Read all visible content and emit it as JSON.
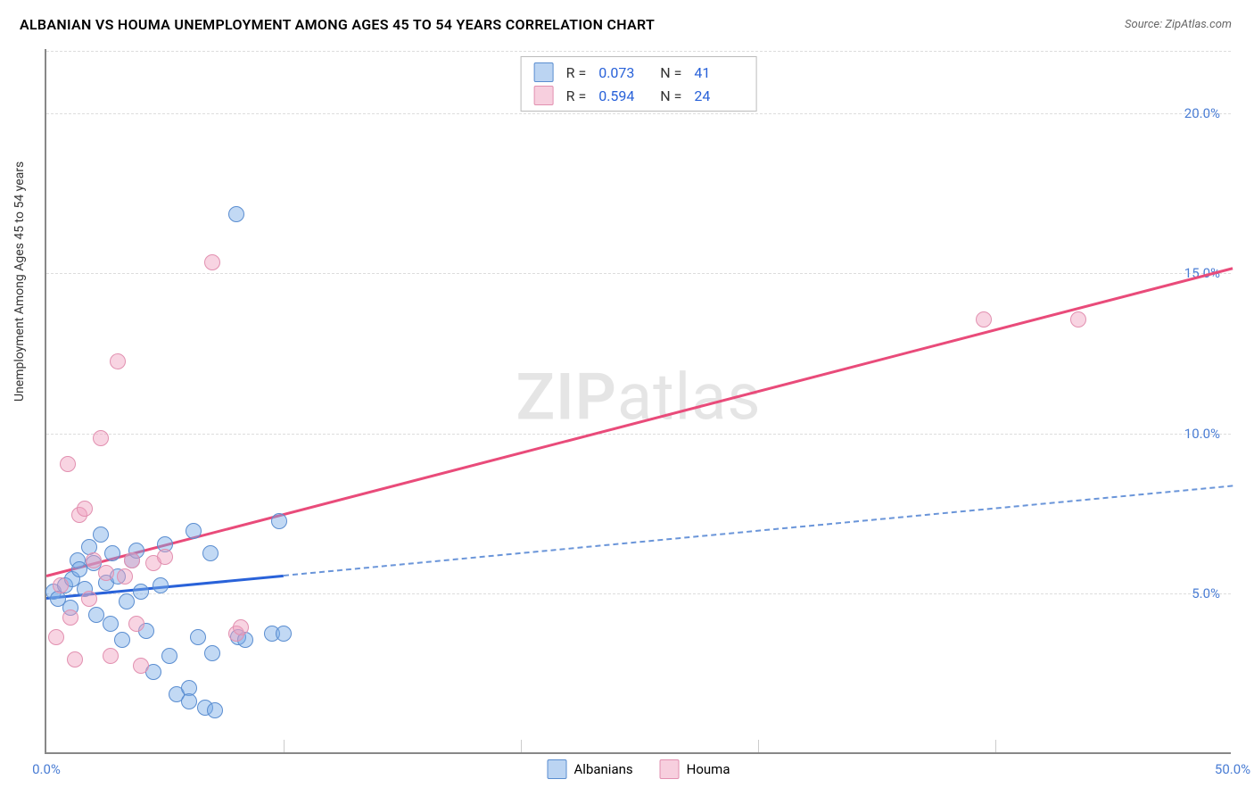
{
  "title": "ALBANIAN VS HOUMA UNEMPLOYMENT AMONG AGES 45 TO 54 YEARS CORRELATION CHART",
  "source": "Source: ZipAtlas.com",
  "ylabel": "Unemployment Among Ages 45 to 54 years",
  "watermark_a": "ZIP",
  "watermark_b": "atlas",
  "xlim": [
    0,
    50
  ],
  "ylim": [
    0,
    22
  ],
  "yticks": [
    {
      "v": 5,
      "label": "5.0%"
    },
    {
      "v": 10,
      "label": "10.0%"
    },
    {
      "v": 15,
      "label": "15.0%"
    },
    {
      "v": 20,
      "label": "20.0%"
    }
  ],
  "xticks": [
    {
      "v": 0,
      "label": "0.0%"
    },
    {
      "v": 50,
      "label": "50.0%"
    }
  ],
  "xgrid_minor": [
    10,
    20,
    30,
    40
  ],
  "series": [
    {
      "name": "Albanians",
      "color": "#5a8dd0",
      "fill": "rgba(120,170,230,0.45)",
      "R": "0.073",
      "N": "41",
      "trend": {
        "x0": 0,
        "y0": 4.9,
        "x1": 50,
        "y1": 8.4,
        "solid_until_x": 10
      },
      "points": [
        [
          0.3,
          5.0
        ],
        [
          0.5,
          4.8
        ],
        [
          0.8,
          5.2
        ],
        [
          1.0,
          4.5
        ],
        [
          1.1,
          5.4
        ],
        [
          1.3,
          6.0
        ],
        [
          1.4,
          5.7
        ],
        [
          1.6,
          5.1
        ],
        [
          1.8,
          6.4
        ],
        [
          2.0,
          5.9
        ],
        [
          2.1,
          4.3
        ],
        [
          2.3,
          6.8
        ],
        [
          2.5,
          5.3
        ],
        [
          2.7,
          4.0
        ],
        [
          2.8,
          6.2
        ],
        [
          3.0,
          5.5
        ],
        [
          3.2,
          3.5
        ],
        [
          3.4,
          4.7
        ],
        [
          3.6,
          6.0
        ],
        [
          3.8,
          6.3
        ],
        [
          4.0,
          5.0
        ],
        [
          4.2,
          3.8
        ],
        [
          4.5,
          2.5
        ],
        [
          4.8,
          5.2
        ],
        [
          5.0,
          6.5
        ],
        [
          5.2,
          3.0
        ],
        [
          5.5,
          1.8
        ],
        [
          6.0,
          2.0
        ],
        [
          6.0,
          1.6
        ],
        [
          6.2,
          6.9
        ],
        [
          6.4,
          3.6
        ],
        [
          6.7,
          1.4
        ],
        [
          6.9,
          6.2
        ],
        [
          7.0,
          3.1
        ],
        [
          7.1,
          1.3
        ],
        [
          8.0,
          16.8
        ],
        [
          8.1,
          3.6
        ],
        [
          8.4,
          3.5
        ],
        [
          9.5,
          3.7
        ],
        [
          9.8,
          7.2
        ],
        [
          10.0,
          3.7
        ]
      ]
    },
    {
      "name": "Houma",
      "color": "#e290b0",
      "fill": "rgba(240,160,190,0.45)",
      "R": "0.594",
      "N": "24",
      "trend": {
        "x0": 0,
        "y0": 5.6,
        "x1": 50,
        "y1": 15.2,
        "solid_until_x": 50
      },
      "points": [
        [
          0.4,
          3.6
        ],
        [
          0.6,
          5.2
        ],
        [
          0.9,
          9.0
        ],
        [
          1.0,
          4.2
        ],
        [
          1.2,
          2.9
        ],
        [
          1.4,
          7.4
        ],
        [
          1.6,
          7.6
        ],
        [
          1.8,
          4.8
        ],
        [
          2.0,
          6.0
        ],
        [
          2.3,
          9.8
        ],
        [
          2.5,
          5.6
        ],
        [
          2.7,
          3.0
        ],
        [
          3.0,
          12.2
        ],
        [
          3.3,
          5.5
        ],
        [
          3.6,
          6.0
        ],
        [
          3.8,
          4.0
        ],
        [
          4.0,
          2.7
        ],
        [
          4.5,
          5.9
        ],
        [
          5.0,
          6.1
        ],
        [
          7.0,
          15.3
        ],
        [
          8.0,
          3.7
        ],
        [
          8.2,
          3.9
        ],
        [
          39.5,
          13.5
        ],
        [
          43.5,
          13.5
        ]
      ]
    }
  ],
  "legend_stat_prefix_R": "R =",
  "legend_stat_prefix_N": "N ="
}
